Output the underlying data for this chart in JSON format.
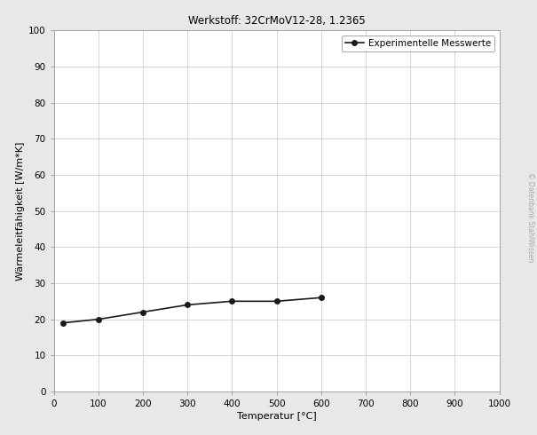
{
  "title": "Werkstoff: 32CrMoV12-28, 1.2365",
  "xlabel": "Temperatur [°C]",
  "ylabel": "Wärmeleitfähigkeit [W/m*K]",
  "x_data": [
    20,
    100,
    200,
    300,
    400,
    500,
    600
  ],
  "y_data": [
    19.0,
    20.0,
    22.0,
    24.0,
    25.0,
    25.0,
    26.0
  ],
  "xlim": [
    0,
    1000
  ],
  "ylim": [
    0,
    100
  ],
  "xticks": [
    0,
    100,
    200,
    300,
    400,
    500,
    600,
    700,
    800,
    900,
    1000
  ],
  "yticks": [
    0,
    10,
    20,
    30,
    40,
    50,
    60,
    70,
    80,
    90,
    100
  ],
  "legend_label": "Experimentelle Messwerte",
  "line_color": "#1a1a1a",
  "marker": "o",
  "marker_size": 4,
  "line_width": 1.2,
  "title_fontsize": 8.5,
  "label_fontsize": 8,
  "tick_fontsize": 7.5,
  "legend_fontsize": 7.5,
  "grid_color": "#d0d0d0",
  "background_color": "#e8e8e8",
  "plot_bg_color": "#ffffff",
  "watermark": "© Datenbank StahlWissen",
  "watermark_fontsize": 5.5,
  "watermark_color": "#aaaaaa"
}
